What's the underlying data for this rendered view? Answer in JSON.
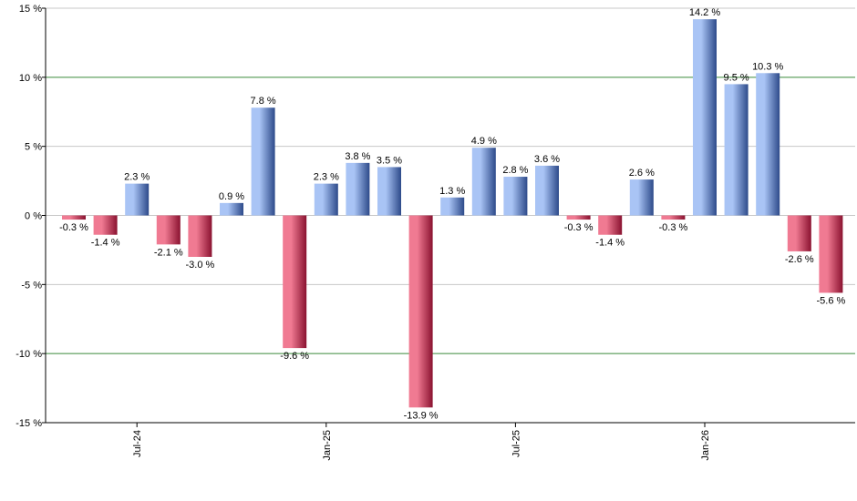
{
  "chart_data": {
    "type": "bar",
    "title": "",
    "xlabel": "",
    "ylabel": "",
    "ylim": [
      -15,
      15
    ],
    "ytick_values": [
      -15,
      -10,
      -5,
      0,
      5,
      10,
      15
    ],
    "ytick_labels": [
      "-15 %",
      "-10 %",
      "-5 %",
      "0 %",
      "5 %",
      "10 %",
      "15 %"
    ],
    "highlight_gridlines": [
      -10,
      10
    ],
    "grid": true,
    "legend": "none",
    "x_ticks": [
      {
        "label": "Jul-24",
        "index": 2
      },
      {
        "label": "Jan-25",
        "index": 8
      },
      {
        "label": "Jul-25",
        "index": 14
      },
      {
        "label": "Jan-26",
        "index": 20
      }
    ],
    "values": [
      -0.3,
      -1.4,
      2.3,
      -2.1,
      -3.0,
      0.9,
      7.8,
      -9.6,
      2.3,
      3.8,
      3.5,
      -13.9,
      1.3,
      4.9,
      2.8,
      3.6,
      -0.3,
      -1.4,
      2.6,
      -0.3,
      14.2,
      9.5,
      10.3,
      -2.6,
      -5.6
    ],
    "value_labels": [
      "-0.3 %",
      "-1.4 %",
      "2.3 %",
      "-2.1 %",
      "-3.0 %",
      "0.9 %",
      "7.8 %",
      "-9.6 %",
      "2.3 %",
      "3.8 %",
      "3.5 %",
      "-13.9 %",
      "1.3 %",
      "4.9 %",
      "2.8 %",
      "3.6 %",
      "-0.3 %",
      "-1.4 %",
      "2.6 %",
      "-0.3 %",
      "14.2 %",
      "9.5 %",
      "10.3 %",
      "-2.6 %",
      "-5.6 %"
    ],
    "colors": {
      "positive_light": "#a9c4f5",
      "positive_dark": "#2d4a8a",
      "negative_light": "#f07a92",
      "negative_dark": "#8a1230",
      "gridline": "#c8c8c8",
      "highlight_gridline": "#3a8a3a",
      "axis": "#000000"
    }
  }
}
